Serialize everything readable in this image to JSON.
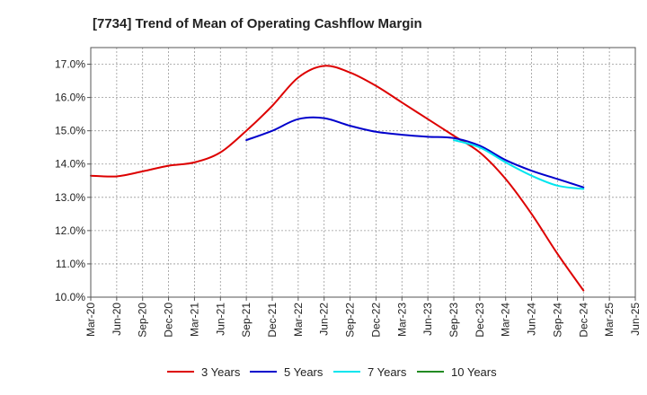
{
  "chart_data": {
    "type": "line",
    "title": "[7734]  Trend of Mean of Operating Cashflow Margin",
    "xlabel": "",
    "ylabel": "",
    "ylim": [
      10.0,
      17.5
    ],
    "yticks": [
      10.0,
      11.0,
      12.0,
      13.0,
      14.0,
      15.0,
      16.0,
      17.0
    ],
    "ytick_labels": [
      "10.0%",
      "11.0%",
      "12.0%",
      "13.0%",
      "14.0%",
      "15.0%",
      "16.0%",
      "17.0%"
    ],
    "categories": [
      "Mar-20",
      "Jun-20",
      "Sep-20",
      "Dec-20",
      "Mar-21",
      "Jun-21",
      "Sep-21",
      "Dec-21",
      "Mar-22",
      "Jun-22",
      "Sep-22",
      "Dec-22",
      "Mar-23",
      "Jun-23",
      "Sep-23",
      "Dec-23",
      "Mar-24",
      "Jun-24",
      "Sep-24",
      "Dec-24",
      "Mar-25",
      "Jun-25"
    ],
    "grid": true,
    "legend_position": "bottom",
    "series": [
      {
        "name": "3 Years",
        "color": "#dd0000",
        "values": [
          13.65,
          13.63,
          13.78,
          13.95,
          14.05,
          14.35,
          15.0,
          15.75,
          16.6,
          16.95,
          16.75,
          16.35,
          15.85,
          15.35,
          14.85,
          14.35,
          13.55,
          12.5,
          11.3,
          10.2,
          null,
          null
        ]
      },
      {
        "name": "5 Years",
        "color": "#0000cc",
        "values": [
          null,
          null,
          null,
          null,
          null,
          null,
          14.72,
          15.0,
          15.35,
          15.38,
          15.15,
          14.97,
          14.88,
          14.82,
          14.78,
          14.55,
          14.12,
          13.8,
          13.55,
          13.3,
          null,
          null
        ]
      },
      {
        "name": "7 Years",
        "color": "#00e5ee",
        "values": [
          null,
          null,
          null,
          null,
          null,
          null,
          null,
          null,
          null,
          null,
          null,
          null,
          null,
          null,
          14.72,
          14.5,
          14.05,
          13.65,
          13.35,
          13.25,
          null,
          null
        ]
      },
      {
        "name": "10 Years",
        "color": "#228b22",
        "values": [
          null,
          null,
          null,
          null,
          null,
          null,
          null,
          null,
          null,
          null,
          null,
          null,
          null,
          null,
          null,
          null,
          null,
          null,
          null,
          null,
          null,
          null
        ]
      }
    ]
  }
}
